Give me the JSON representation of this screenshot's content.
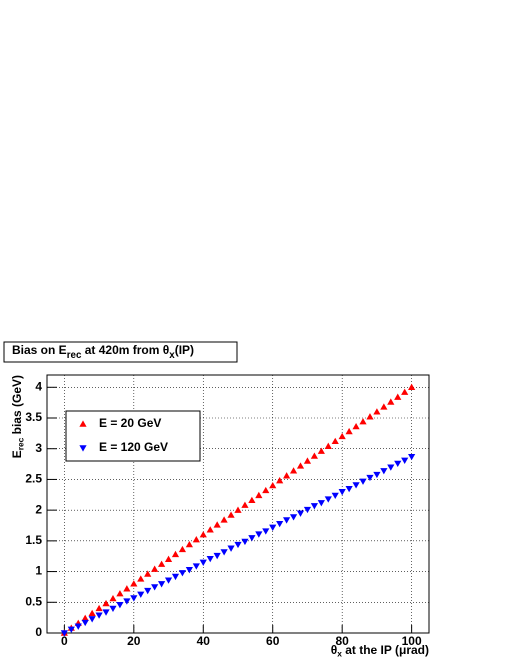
{
  "chart_data": {
    "type": "scatter",
    "title": [
      "Bias on E",
      "rec",
      " at 420m from θ",
      "x",
      "(IP)"
    ],
    "x_label": [
      "θ",
      "x",
      " at the IP (μrad)"
    ],
    "y_label": [
      "E",
      "rec",
      " bias (GeV)"
    ],
    "x": [
      0,
      2,
      4,
      6,
      8,
      10,
      12,
      14,
      16,
      18,
      20,
      22,
      24,
      26,
      28,
      30,
      32,
      34,
      36,
      38,
      40,
      42,
      44,
      46,
      48,
      50,
      52,
      54,
      56,
      58,
      60,
      62,
      64,
      66,
      68,
      70,
      72,
      74,
      76,
      78,
      80,
      82,
      84,
      86,
      88,
      90,
      92,
      94,
      96,
      98,
      100
    ],
    "series": [
      {
        "name": "E = 20 GeV",
        "color": "#ff0000",
        "marker": "triangle-up",
        "values": [
          0,
          0.08,
          0.16,
          0.24,
          0.32,
          0.4,
          0.48,
          0.56,
          0.64,
          0.72,
          0.8,
          0.88,
          0.96,
          1.04,
          1.12,
          1.2,
          1.28,
          1.36,
          1.44,
          1.52,
          1.6,
          1.68,
          1.76,
          1.84,
          1.92,
          2,
          2.08,
          2.16,
          2.24,
          2.32,
          2.4,
          2.48,
          2.56,
          2.64,
          2.72,
          2.8,
          2.88,
          2.96,
          3.04,
          3.12,
          3.2,
          3.28,
          3.36,
          3.44,
          3.52,
          3.6,
          3.68,
          3.76,
          3.84,
          3.92,
          4
        ]
      },
      {
        "name": "E = 120 GeV",
        "color": "#0000ff",
        "marker": "triangle-down",
        "values": [
          0,
          0.06,
          0.11,
          0.17,
          0.23,
          0.29,
          0.34,
          0.4,
          0.46,
          0.52,
          0.57,
          0.63,
          0.69,
          0.75,
          0.8,
          0.86,
          0.92,
          0.98,
          1.03,
          1.09,
          1.15,
          1.21,
          1.26,
          1.32,
          1.38,
          1.44,
          1.49,
          1.55,
          1.61,
          1.66,
          1.72,
          1.78,
          1.84,
          1.89,
          1.95,
          2.01,
          2.07,
          2.12,
          2.18,
          2.24,
          2.3,
          2.35,
          2.41,
          2.47,
          2.53,
          2.58,
          2.64,
          2.7,
          2.76,
          2.81,
          2.87
        ]
      }
    ],
    "xlim": [
      -5,
      105
    ],
    "xticks": [
      0,
      20,
      40,
      60,
      80,
      100
    ],
    "ylim": [
      0,
      4.2
    ],
    "yticks": [
      0,
      0.5,
      1,
      1.5,
      2,
      2.5,
      3,
      3.5,
      4
    ],
    "grid": true,
    "legend": "upper-left"
  }
}
